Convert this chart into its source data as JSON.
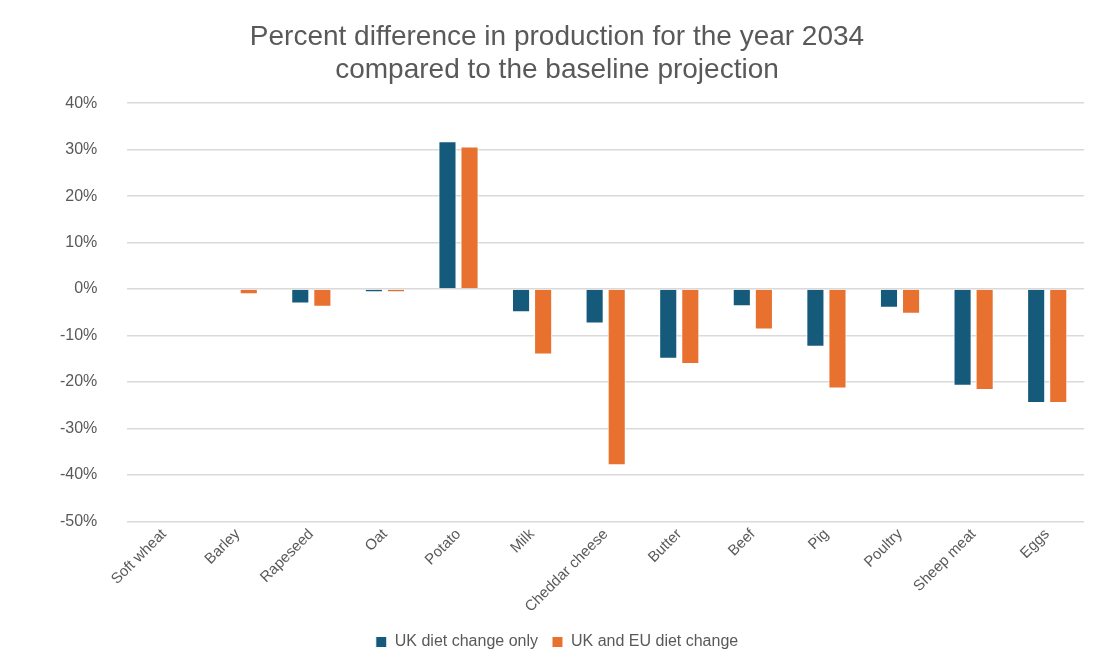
{
  "chart_data": {
    "type": "bar",
    "title": [
      "Percent difference in production for the year 2034",
      "compared to the baseline projection"
    ],
    "categories": [
      "Soft wheat",
      "Barley",
      "Rapeseed",
      "Oat",
      "Potato",
      "Milk",
      "Cheddar cheese",
      "Butter",
      "Beef",
      "Pig",
      "Poultry",
      "Sheep meat",
      "Eggs"
    ],
    "series": [
      {
        "name": "UK diet change only",
        "color": "#155a7b",
        "values": [
          0,
          0,
          -3.1,
          -0.7,
          31.8,
          -5.0,
          -7.4,
          -15.0,
          -3.7,
          -12.4,
          -4.0,
          -20.8,
          -24.5
        ]
      },
      {
        "name": "UK and EU diet change",
        "color": "#e8712f",
        "values": [
          0,
          -1.1,
          -3.8,
          -0.7,
          30.7,
          -14.1,
          -37.9,
          -16.1,
          -8.7,
          -21.4,
          -5.3,
          -21.7,
          -24.5
        ]
      }
    ],
    "ylim": [
      -50,
      40
    ],
    "yticks": [
      {
        "value": -50,
        "label": "-50%"
      },
      {
        "value": -40,
        "label": "-40%"
      },
      {
        "value": -30,
        "label": "-30%"
      },
      {
        "value": -20,
        "label": "-20%"
      },
      {
        "value": -10,
        "label": "-10%"
      },
      {
        "value": 0,
        "label": "0%"
      },
      {
        "value": 10,
        "label": "10%"
      },
      {
        "value": 20,
        "label": "20%"
      },
      {
        "value": 30,
        "label": "30%"
      },
      {
        "value": 40,
        "label": "40%"
      }
    ],
    "grid": "y",
    "legend": "bottom"
  }
}
